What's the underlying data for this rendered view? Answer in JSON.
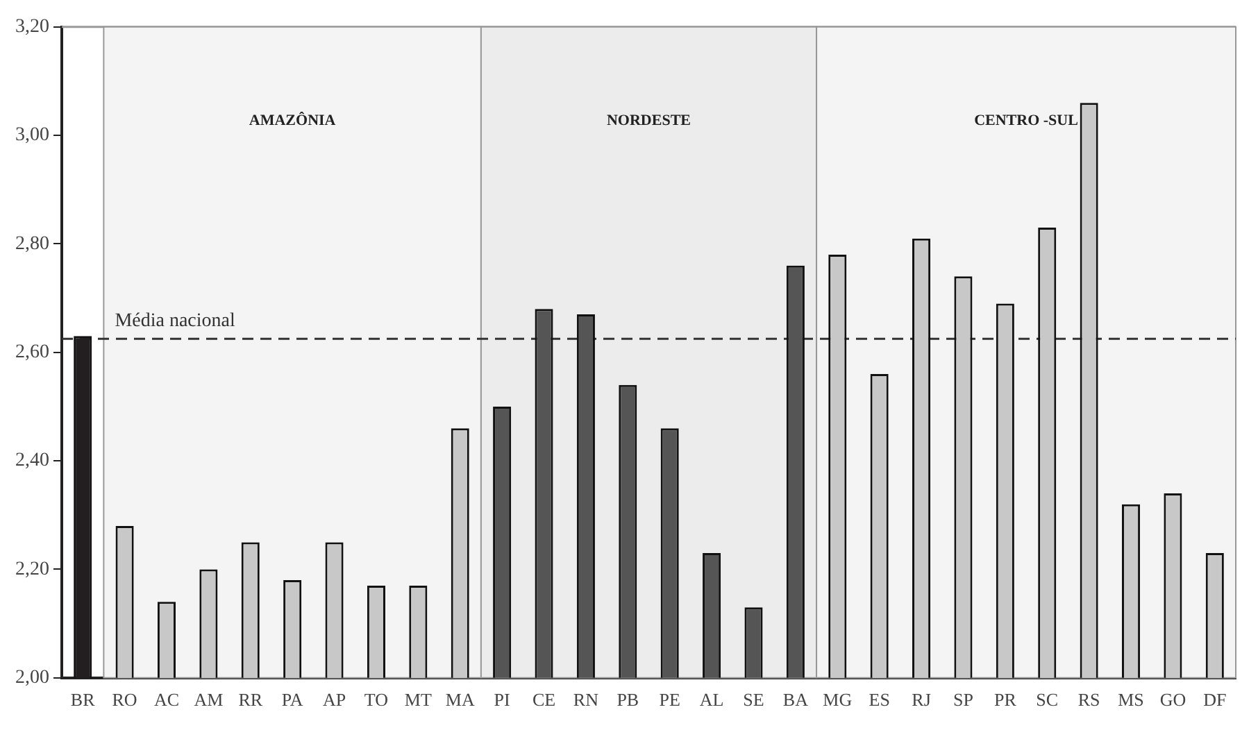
{
  "chart_data": {
    "type": "bar",
    "categories": [
      "BR",
      "RO",
      "AC",
      "AM",
      "RR",
      "PA",
      "AP",
      "TO",
      "MT",
      "MA",
      "PI",
      "CE",
      "RN",
      "PB",
      "PE",
      "AL",
      "SE",
      "BA",
      "MG",
      "ES",
      "RJ",
      "SP",
      "PR",
      "SC",
      "RS",
      "MS",
      "GO",
      "DF"
    ],
    "values": [
      2.63,
      2.28,
      2.14,
      2.2,
      2.25,
      2.18,
      2.25,
      2.17,
      2.17,
      2.46,
      2.5,
      2.68,
      2.67,
      2.54,
      2.46,
      2.23,
      2.13,
      2.76,
      2.78,
      2.56,
      2.81,
      2.74,
      2.69,
      2.83,
      3.06,
      2.32,
      2.34,
      2.23
    ],
    "colors": [
      "#231f20",
      "#c8c8c8",
      "#c8c8c8",
      "#c8c8c8",
      "#c8c8c8",
      "#c8c8c8",
      "#c8c8c8",
      "#c8c8c8",
      "#c8c8c8",
      "#c8c8c8",
      "#555555",
      "#555555",
      "#555555",
      "#555555",
      "#555555",
      "#555555",
      "#555555",
      "#555555",
      "#c8c8c8",
      "#c8c8c8",
      "#c8c8c8",
      "#c8c8c8",
      "#c8c8c8",
      "#c8c8c8",
      "#c8c8c8",
      "#c8c8c8",
      "#c8c8c8",
      "#c8c8c8"
    ],
    "ylim": [
      2.0,
      3.2
    ],
    "yticks": [
      {
        "value": 2.0,
        "label": "2,00"
      },
      {
        "value": 2.2,
        "label": "2,20"
      },
      {
        "value": 2.4,
        "label": "2,40"
      },
      {
        "value": 2.6,
        "label": "2,60"
      },
      {
        "value": 2.8,
        "label": "2,80"
      },
      {
        "value": 3.0,
        "label": "3,00"
      },
      {
        "value": 3.2,
        "label": "3,20"
      }
    ],
    "ref_lines": [
      {
        "axis": "y",
        "value": 2.625,
        "label": "Média nacional",
        "line_style": "dashed",
        "color": "#333333"
      }
    ],
    "bands": [
      {
        "axis": "x",
        "from": "RO",
        "to": "MA",
        "label": "AMAZÔNIA",
        "color": "#f4f4f4"
      },
      {
        "axis": "x",
        "from": "PI",
        "to": "BA",
        "label": "NORDESTE",
        "color": "#ececec"
      },
      {
        "axis": "x",
        "from": "MG",
        "to": "DF",
        "label": "CENTRO -SUL",
        "color": "#f4f4f4"
      }
    ],
    "grid": false,
    "legend": false
  }
}
